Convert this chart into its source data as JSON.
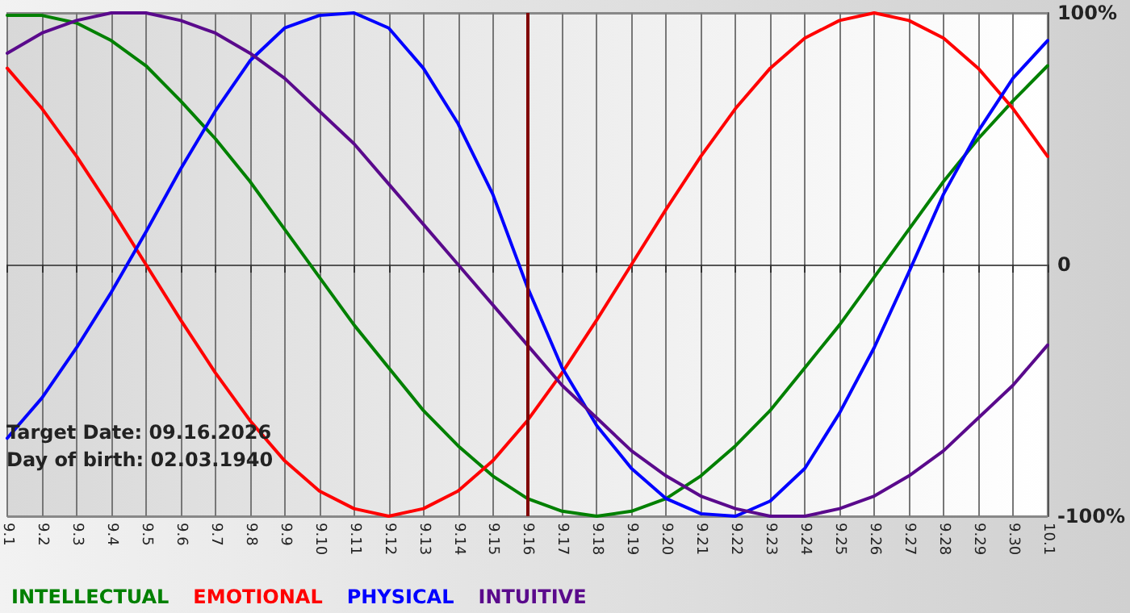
{
  "chart_data": {
    "type": "line",
    "categories": [
      "9.1",
      "9.2",
      "9.3",
      "9.4",
      "9.5",
      "9.6",
      "9.7",
      "9.8",
      "9.9",
      "9.10",
      "9.11",
      "9.12",
      "9.13",
      "9.14",
      "9.15",
      "9.16",
      "9.17",
      "9.18",
      "9.19",
      "9.20",
      "9.21",
      "9.22",
      "9.23",
      "9.24",
      "9.25",
      "9.26",
      "9.27",
      "9.28",
      "9.29",
      "9.30",
      "10.1"
    ],
    "series": [
      {
        "name": "INTELLECTUAL",
        "color": "#008000",
        "values": [
          99,
          99,
          96,
          89,
          79,
          65,
          50,
          33,
          14,
          -5,
          -24,
          -41,
          -58,
          -72,
          -84,
          -93,
          -98,
          -100,
          -98,
          -93,
          -84,
          -72,
          -58,
          -41,
          -24,
          -5,
          14,
          33,
          50,
          65,
          79
        ]
      },
      {
        "name": "EMOTIONAL",
        "color": "#ff0000",
        "values": [
          78,
          62,
          43,
          22,
          0,
          -22,
          -43,
          -62,
          -78,
          -90,
          -97,
          -100,
          -97,
          -90,
          -78,
          -62,
          -43,
          -22,
          0,
          22,
          43,
          62,
          78,
          90,
          97,
          100,
          97,
          90,
          78,
          62,
          43
        ]
      },
      {
        "name": "PHYSICAL",
        "color": "#0000ff",
        "values": [
          -69,
          -53,
          -33,
          -11,
          13,
          38,
          61,
          81,
          94,
          99,
          100,
          94,
          78,
          56,
          28,
          -9,
          -41,
          -64,
          -81,
          -93,
          -99,
          -100,
          -94,
          -81,
          -59,
          -33,
          -3,
          28,
          53,
          74,
          89
        ]
      },
      {
        "name": "INTUITIVE",
        "color": "#5a0a8c",
        "values": [
          84,
          92,
          97,
          100,
          100,
          97,
          92,
          84,
          74,
          61,
          48,
          32,
          16,
          0,
          -16,
          -32,
          -48,
          -61,
          -74,
          -84,
          -92,
          -97,
          -100,
          -100,
          -97,
          -92,
          -84,
          -74,
          -61,
          -48,
          -32
        ]
      }
    ],
    "ylim": [
      -100,
      100
    ],
    "yticks": [
      {
        "value": 100,
        "label": "100%"
      },
      0,
      {
        "value": -100,
        "label": "-100%"
      }
    ],
    "grid": true,
    "legend": "bottom left",
    "marker": "none",
    "line_style": "solid",
    "ref_lines": [
      {
        "axis": "x",
        "value": "9.16",
        "color": "#800000"
      }
    ],
    "annotations": [
      "Target Date: 09.16.2026",
      "Day of birth: 02.03.1940"
    ]
  }
}
